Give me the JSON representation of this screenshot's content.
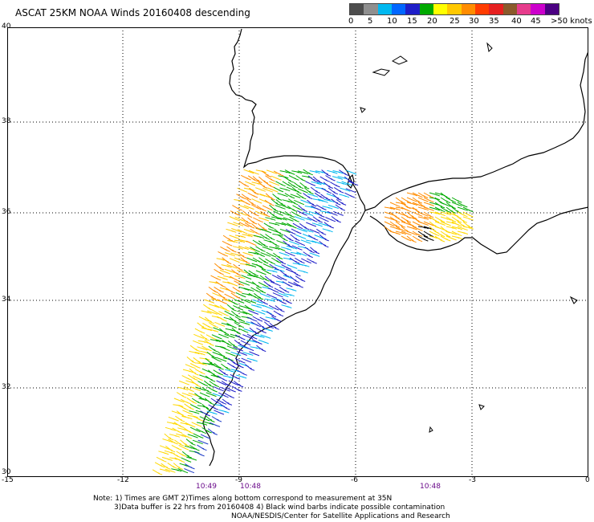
{
  "title": "ASCAT 25KM NOAA Winds 20160408 descending",
  "legend": {
    "colors": [
      "#4d4d4d",
      "#8f8f8f",
      "#00b8f0",
      "#0066ff",
      "#1e1ec8",
      "#00aa00",
      "#ffff00",
      "#ffc800",
      "#ff8c00",
      "#ff3c00",
      "#e62020",
      "#8b5a2b",
      "#e63c8c",
      "#cc00cc",
      "#4b0082"
    ],
    "labels": [
      "0",
      "5",
      "10",
      "15",
      "20",
      "25",
      "30",
      "35",
      "40",
      "45",
      ">50 knots"
    ]
  },
  "axes": {
    "y_ticks": [
      "40",
      "38",
      "36",
      "34",
      "32",
      "30"
    ],
    "x_ticks": [
      "-15",
      "-12",
      "-9",
      "-6",
      "-3",
      "0"
    ]
  },
  "times": [
    "10:49",
    "10:48",
    "10:48"
  ],
  "notes": [
    "Note: 1) Times are GMT 2)Times along bottom correspond to measurement at 35N",
    "3)Data buffer is 22 hrs from 20160408 4) Black wind barbs indicate possible contamination",
    "NOAA/NESDIS/Center for Satellite Applications and Research"
  ]
}
